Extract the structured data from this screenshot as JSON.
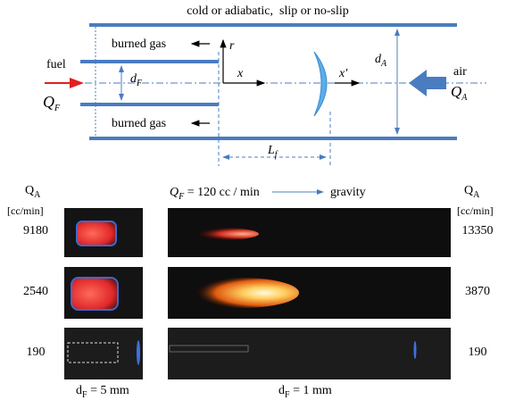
{
  "diagram": {
    "wall_label": "cold or adiabatic,  slip or no-slip",
    "burned_gas_top": "burned gas",
    "burned_gas_bottom": "burned gas",
    "fuel": "fuel",
    "fuel_diameter": {
      "symbol": "d",
      "sub": "F"
    },
    "fuel_flow": {
      "symbol": "Q",
      "sub": "F"
    },
    "r_axis": "r",
    "x_axis": "x",
    "x_prime": "x′",
    "air_diameter": {
      "symbol": "d",
      "sub": "A"
    },
    "air": "air",
    "air_flow": {
      "symbol": "Q",
      "sub": "A"
    },
    "flame_length": {
      "symbol": "L",
      "sub": "f"
    }
  },
  "photos": {
    "fuel_flow": {
      "symbol": "Q",
      "sub": "F",
      "text": " = 120 cc / min"
    },
    "gravity": "gravity",
    "left_header": {
      "symbol": "Q",
      "sub": "A",
      "unit": "[cc/min]"
    },
    "right_header": {
      "symbol": "Q",
      "sub": "A",
      "unit": "[cc/min]"
    },
    "left_values": [
      9180,
      2540,
      190
    ],
    "right_values": [
      13350,
      3870,
      190
    ],
    "left_caption": {
      "symbol": "d",
      "sub": "F",
      "text": " = 5 mm"
    },
    "right_caption": {
      "symbol": "d",
      "sub": "F",
      "text": " = 1 mm"
    }
  }
}
